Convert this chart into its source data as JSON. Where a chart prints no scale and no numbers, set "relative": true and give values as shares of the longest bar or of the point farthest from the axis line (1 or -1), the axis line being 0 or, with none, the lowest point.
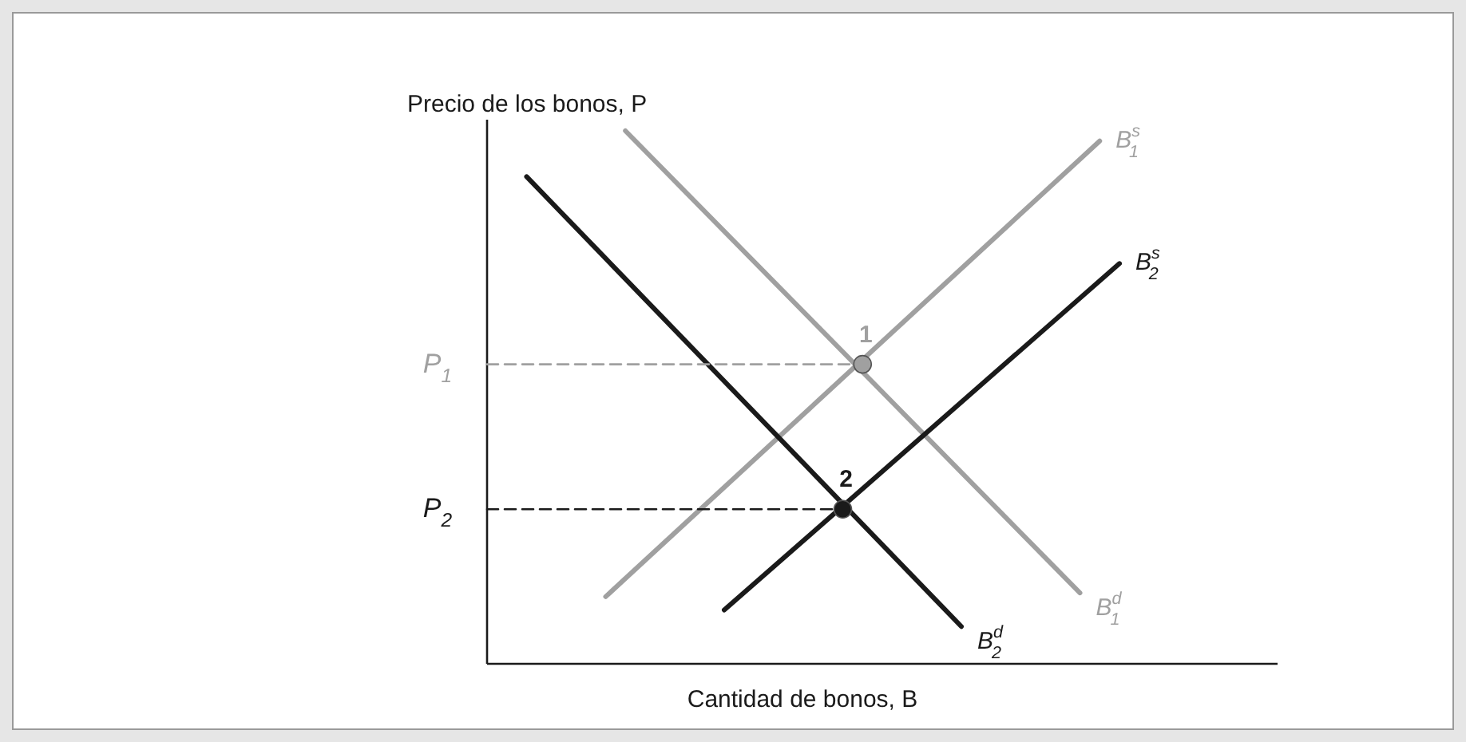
{
  "chart_data": {
    "type": "line",
    "relative": true,
    "xlabel": "Cantidad de bonos, B",
    "ylabel": "Precio de los bonos, P",
    "marker": "none",
    "categories": [
      null,
      null,
      null,
      null,
      null,
      null,
      null,
      null,
      null,
      null,
      null,
      null,
      null,
      null,
      null,
      null,
      null,
      null,
      null,
      null,
      null,
      null,
      null,
      null,
      null,
      null,
      null,
      null,
      null,
      null,
      null,
      null,
      null,
      null,
      null,
      null,
      null,
      null,
      null,
      null,
      null
    ],
    "series": [
      {
        "name": "B$^{d}$$_{1}$",
        "color": "#a0a0a0",
        "values": [
          null,
          null,
          null,
          null,
          null,
          null,
          null,
          1.0,
          null,
          null,
          null,
          null,
          null,
          null,
          null,
          null,
          null,
          null,
          null,
          null,
          null,
          null,
          null,
          null,
          null,
          null,
          null,
          null,
          null,
          null,
          0.133,
          null,
          null,
          null,
          null,
          null,
          null,
          null,
          null,
          null,
          null
        ]
      },
      {
        "name": "B$^{s}$$_{1}$",
        "color": "#a0a0a0",
        "values": [
          null,
          null,
          null,
          null,
          null,
          null,
          0.126,
          null,
          null,
          null,
          null,
          null,
          null,
          null,
          null,
          null,
          null,
          null,
          null,
          null,
          null,
          null,
          null,
          null,
          null,
          null,
          null,
          null,
          null,
          null,
          null,
          0.981,
          null,
          null,
          null,
          null,
          null,
          null,
          null,
          null,
          null
        ]
      },
      {
        "name": "B$^{d}$$_{2}$",
        "color": "#1a1a1a",
        "values": [
          null,
          null,
          0.914,
          null,
          null,
          null,
          null,
          null,
          null,
          null,
          null,
          null,
          null,
          null,
          null,
          null,
          null,
          null,
          null,
          null,
          null,
          null,
          null,
          null,
          0.07,
          null,
          null,
          null,
          null,
          null,
          null,
          null,
          null,
          null,
          null,
          null,
          null,
          null,
          null,
          null,
          null
        ]
      },
      {
        "name": "B$^{s}$$_{2}$",
        "color": "#1a1a1a",
        "values": [
          null,
          null,
          null,
          null,
          null,
          null,
          null,
          null,
          null,
          null,
          null,
          null,
          0.101,
          null,
          null,
          null,
          null,
          null,
          null,
          null,
          null,
          null,
          null,
          null,
          null,
          null,
          null,
          null,
          null,
          null,
          null,
          null,
          0.751,
          null,
          null,
          null,
          null,
          null,
          null,
          null,
          null
        ]
      },
      {
        "name": "P$_{1}$",
        "color": "#a0a0a0",
        "line_style": "dashed",
        "values": [
          0.562,
          null,
          null,
          null,
          null,
          null,
          null,
          null,
          null,
          null,
          null,
          null,
          null,
          null,
          null,
          null,
          null,
          null,
          null,
          0.562,
          null,
          null,
          null,
          null,
          null,
          null,
          null,
          null,
          null,
          null,
          null,
          null,
          null,
          null,
          null,
          null,
          null,
          null,
          null,
          null,
          null
        ]
      },
      {
        "name": "P$_{2}$",
        "color": "#1a1a1a",
        "line_style": "dashed",
        "values": [
          0.29,
          null,
          null,
          null,
          null,
          null,
          null,
          null,
          null,
          null,
          null,
          null,
          null,
          null,
          null,
          null,
          null,
          null,
          0.29,
          null,
          null,
          null,
          null,
          null,
          null,
          null,
          null,
          null,
          null,
          null,
          null,
          null,
          null,
          null,
          null,
          null,
          null,
          null,
          null,
          null,
          null
        ]
      },
      {
        "name": "1",
        "marker": "circle",
        "color": "#a0a0a0",
        "values": [
          null,
          null,
          null,
          null,
          null,
          null,
          null,
          null,
          null,
          null,
          null,
          null,
          null,
          null,
          null,
          null,
          null,
          null,
          null,
          0.562,
          null,
          null,
          null,
          null,
          null,
          null,
          null,
          null,
          null,
          null,
          null,
          null,
          null,
          null,
          null,
          null,
          null,
          null,
          null,
          null,
          null
        ]
      },
      {
        "name": "2",
        "marker": "circle",
        "color": "#1a1a1a",
        "values": [
          null,
          null,
          null,
          null,
          null,
          null,
          null,
          null,
          null,
          null,
          null,
          null,
          null,
          null,
          null,
          null,
          null,
          null,
          0.29,
          null,
          null,
          null,
          null,
          null,
          null,
          null,
          null,
          null,
          null,
          null,
          null,
          null,
          null,
          null,
          null,
          null,
          null,
          null,
          null,
          null,
          null
        ]
      }
    ]
  }
}
